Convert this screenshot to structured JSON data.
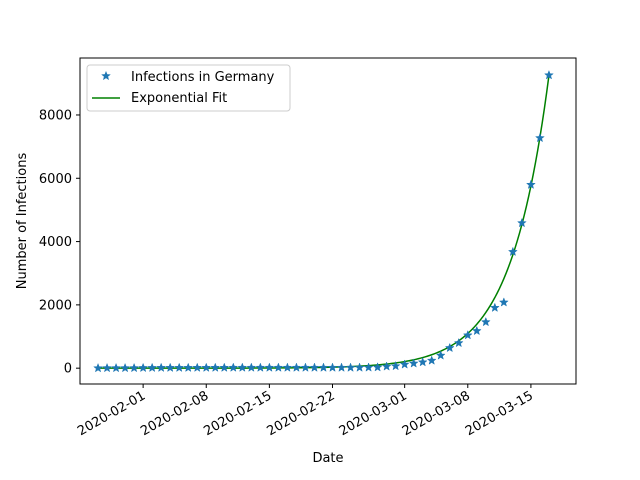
{
  "chart_data": {
    "type": "line",
    "title": "",
    "xlabel": "Date",
    "ylabel": "Number of Infections",
    "xlim": [
      "2020-01-25",
      "2020-03-20"
    ],
    "ylim": [
      -500,
      9800
    ],
    "grid": false,
    "legend_position": "top-left",
    "x_ticks": [
      "2020-02-01",
      "2020-02-08",
      "2020-02-15",
      "2020-02-22",
      "2020-03-01",
      "2020-03-08",
      "2020-03-15"
    ],
    "y_ticks": [
      0,
      2000,
      4000,
      6000,
      8000
    ],
    "series": [
      {
        "name": "Infections in Germany",
        "style": "markers",
        "marker": "star",
        "color": "#1f77b4",
        "points": [
          [
            "2020-01-27",
            1
          ],
          [
            "2020-01-28",
            4
          ],
          [
            "2020-01-29",
            4
          ],
          [
            "2020-01-30",
            4
          ],
          [
            "2020-01-31",
            5
          ],
          [
            "2020-02-01",
            8
          ],
          [
            "2020-02-02",
            10
          ],
          [
            "2020-02-03",
            12
          ],
          [
            "2020-02-04",
            12
          ],
          [
            "2020-02-05",
            12
          ],
          [
            "2020-02-06",
            12
          ],
          [
            "2020-02-07",
            13
          ],
          [
            "2020-02-08",
            13
          ],
          [
            "2020-02-09",
            14
          ],
          [
            "2020-02-10",
            14
          ],
          [
            "2020-02-11",
            16
          ],
          [
            "2020-02-12",
            16
          ],
          [
            "2020-02-13",
            16
          ],
          [
            "2020-02-14",
            16
          ],
          [
            "2020-02-15",
            16
          ],
          [
            "2020-02-16",
            16
          ],
          [
            "2020-02-17",
            16
          ],
          [
            "2020-02-18",
            16
          ],
          [
            "2020-02-19",
            16
          ],
          [
            "2020-02-20",
            16
          ],
          [
            "2020-02-21",
            16
          ],
          [
            "2020-02-22",
            16
          ],
          [
            "2020-02-23",
            16
          ],
          [
            "2020-02-24",
            16
          ],
          [
            "2020-02-25",
            18
          ],
          [
            "2020-02-26",
            21
          ],
          [
            "2020-02-27",
            26
          ],
          [
            "2020-02-28",
            53
          ],
          [
            "2020-02-29",
            66
          ],
          [
            "2020-03-01",
            117
          ],
          [
            "2020-03-02",
            150
          ],
          [
            "2020-03-03",
            188
          ],
          [
            "2020-03-04",
            240
          ],
          [
            "2020-03-05",
            400
          ],
          [
            "2020-03-06",
            639
          ],
          [
            "2020-03-07",
            795
          ],
          [
            "2020-03-08",
            1040
          ],
          [
            "2020-03-09",
            1176
          ],
          [
            "2020-03-10",
            1457
          ],
          [
            "2020-03-11",
            1908
          ],
          [
            "2020-03-12",
            2078
          ],
          [
            "2020-03-13",
            3675
          ],
          [
            "2020-03-14",
            4585
          ],
          [
            "2020-03-15",
            5795
          ],
          [
            "2020-03-16",
            7272
          ],
          [
            "2020-03-17",
            9257
          ]
        ]
      },
      {
        "name": "Exponential Fit",
        "style": "line",
        "color": "#008000",
        "fit": {
          "start": "2020-01-27",
          "end": "2020-03-17",
          "a": 9250,
          "b": 0.237
        }
      }
    ]
  }
}
